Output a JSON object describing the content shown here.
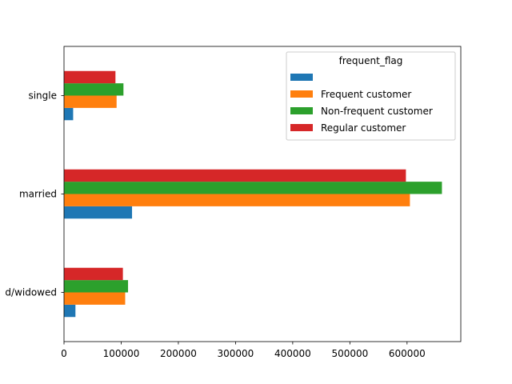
{
  "chart_data": {
    "type": "bar",
    "orientation": "horizontal",
    "categories": [
      "divorced/widowed",
      "married",
      "single"
    ],
    "series": [
      {
        "name": "",
        "color": "#1f77b4",
        "values": [
          20000,
          119000,
          16000
        ]
      },
      {
        "name": "Frequent customer",
        "color": "#ff7f0e",
        "values": [
          107000,
          605000,
          92000
        ]
      },
      {
        "name": "Non-frequent customer",
        "color": "#2ca02c",
        "values": [
          112000,
          661000,
          104000
        ]
      },
      {
        "name": "Regular customer",
        "color": "#d62728",
        "values": [
          103000,
          598000,
          90000
        ]
      }
    ],
    "category_tick_labels": [
      "d/widowed",
      "married",
      "single"
    ],
    "x_ticks": [
      0,
      100000,
      200000,
      300000,
      400000,
      500000,
      600000
    ],
    "x_tick_labels": [
      "0",
      "100000",
      "200000",
      "300000",
      "400000",
      "500000",
      "600000"
    ],
    "xlim": [
      0,
      694000
    ],
    "title": "",
    "xlabel": "",
    "ylabel": "",
    "grid": false,
    "legend": {
      "title": "frequent_flag",
      "placement": "top-right"
    }
  }
}
